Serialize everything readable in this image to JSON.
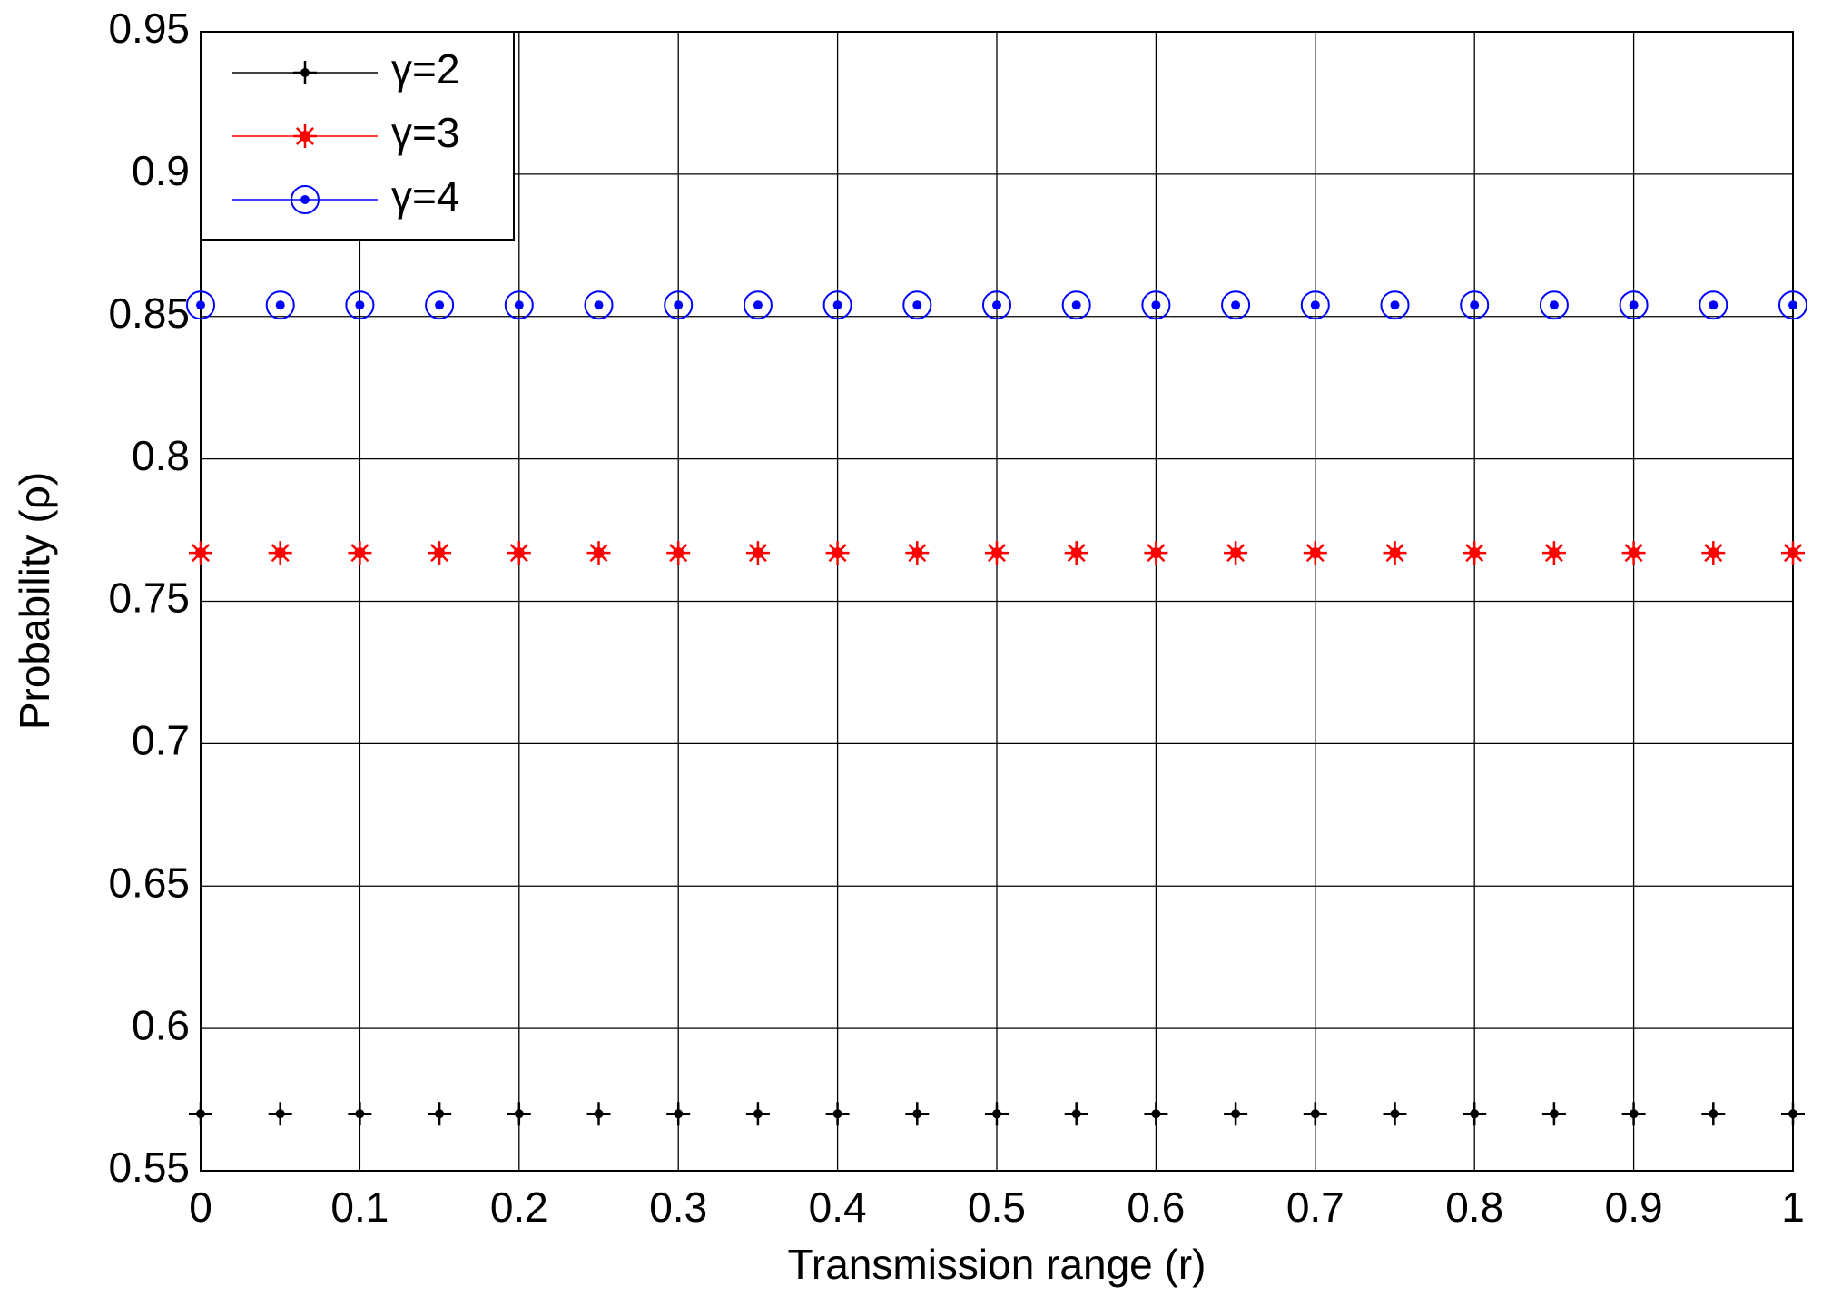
{
  "chart_data": {
    "type": "scatter",
    "xlabel": "Transmission range (r)",
    "ylabel": "Probability (ρ)",
    "x": [
      0,
      0.05,
      0.1,
      0.15,
      0.2,
      0.25,
      0.3,
      0.35,
      0.4,
      0.45,
      0.5,
      0.55,
      0.6,
      0.65,
      0.7,
      0.75,
      0.8,
      0.85,
      0.9,
      0.95,
      1
    ],
    "series": [
      {
        "name": "γ=2",
        "color": "#000000",
        "marker": "plus",
        "values": [
          0.57,
          0.57,
          0.57,
          0.57,
          0.57,
          0.57,
          0.57,
          0.57,
          0.57,
          0.57,
          0.57,
          0.57,
          0.57,
          0.57,
          0.57,
          0.57,
          0.57,
          0.57,
          0.57,
          0.57,
          0.57
        ]
      },
      {
        "name": "γ=3",
        "color": "#ff0000",
        "marker": "star",
        "values": [
          0.767,
          0.767,
          0.767,
          0.767,
          0.767,
          0.767,
          0.767,
          0.767,
          0.767,
          0.767,
          0.767,
          0.767,
          0.767,
          0.767,
          0.767,
          0.767,
          0.767,
          0.767,
          0.767,
          0.767,
          0.767
        ]
      },
      {
        "name": "γ=4",
        "color": "#0000ff",
        "marker": "circle",
        "values": [
          0.854,
          0.854,
          0.854,
          0.854,
          0.854,
          0.854,
          0.854,
          0.854,
          0.854,
          0.854,
          0.854,
          0.854,
          0.854,
          0.854,
          0.854,
          0.854,
          0.854,
          0.854,
          0.854,
          0.854,
          0.854
        ]
      }
    ],
    "xlim": [
      0,
      1
    ],
    "xticks": [
      0,
      0.1,
      0.2,
      0.3,
      0.4,
      0.5,
      0.6,
      0.7,
      0.8,
      0.9,
      1
    ],
    "ylim": [
      0.55,
      0.95
    ],
    "yticks": [
      0.55,
      0.6,
      0.65,
      0.7,
      0.75,
      0.8,
      0.85,
      0.9,
      0.95
    ],
    "grid": true,
    "legend": "upper left"
  }
}
